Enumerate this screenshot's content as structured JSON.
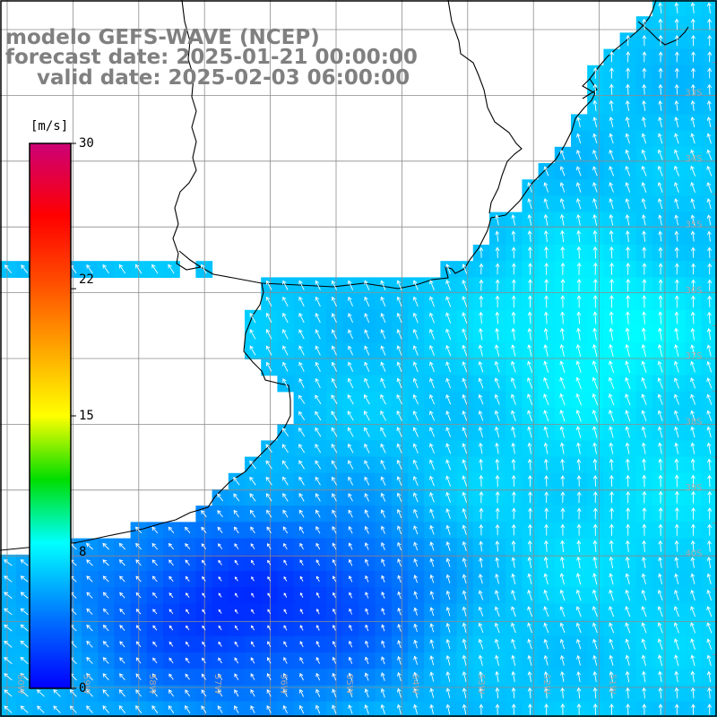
{
  "header": {
    "model": "modelo GEFS-WAVE (NCEP)",
    "forecast": "forecast date: 2025-01-21 00:00:00",
    "valid": "valid date: 2025-02-03 06:00:00"
  },
  "colorbar": {
    "unit": "[m/s]",
    "ticks": [
      "30",
      "22",
      "15",
      "8",
      "0"
    ],
    "tick_values": [
      30,
      22,
      15,
      8,
      0
    ],
    "range": [
      0,
      30
    ],
    "stops": [
      {
        "v": 0,
        "c": "#0000ff"
      },
      {
        "v": 4,
        "c": "#0077ff"
      },
      {
        "v": 8,
        "c": "#00ffff"
      },
      {
        "v": 11.5,
        "c": "#00dd00"
      },
      {
        "v": 15,
        "c": "#ffff00"
      },
      {
        "v": 18.5,
        "c": "#ffaa00"
      },
      {
        "v": 22,
        "c": "#ff5500"
      },
      {
        "v": 26,
        "c": "#ff0000"
      },
      {
        "v": 30,
        "c": "#cc0077"
      }
    ]
  },
  "grid": {
    "lat_labels": [
      "33S",
      "34S",
      "35S",
      "36S",
      "37S",
      "38S",
      "39S",
      "40S"
    ],
    "lon_labels": [
      "60W",
      "59W",
      "58W",
      "57W",
      "56W",
      "55W",
      "54W",
      "53W",
      "52W",
      "51W"
    ]
  },
  "colors": {
    "coast": "#000000",
    "grid": "#8c8c8c",
    "arrow": "#ffffff",
    "label": "#a9a9a9",
    "title": "#808080"
  }
}
